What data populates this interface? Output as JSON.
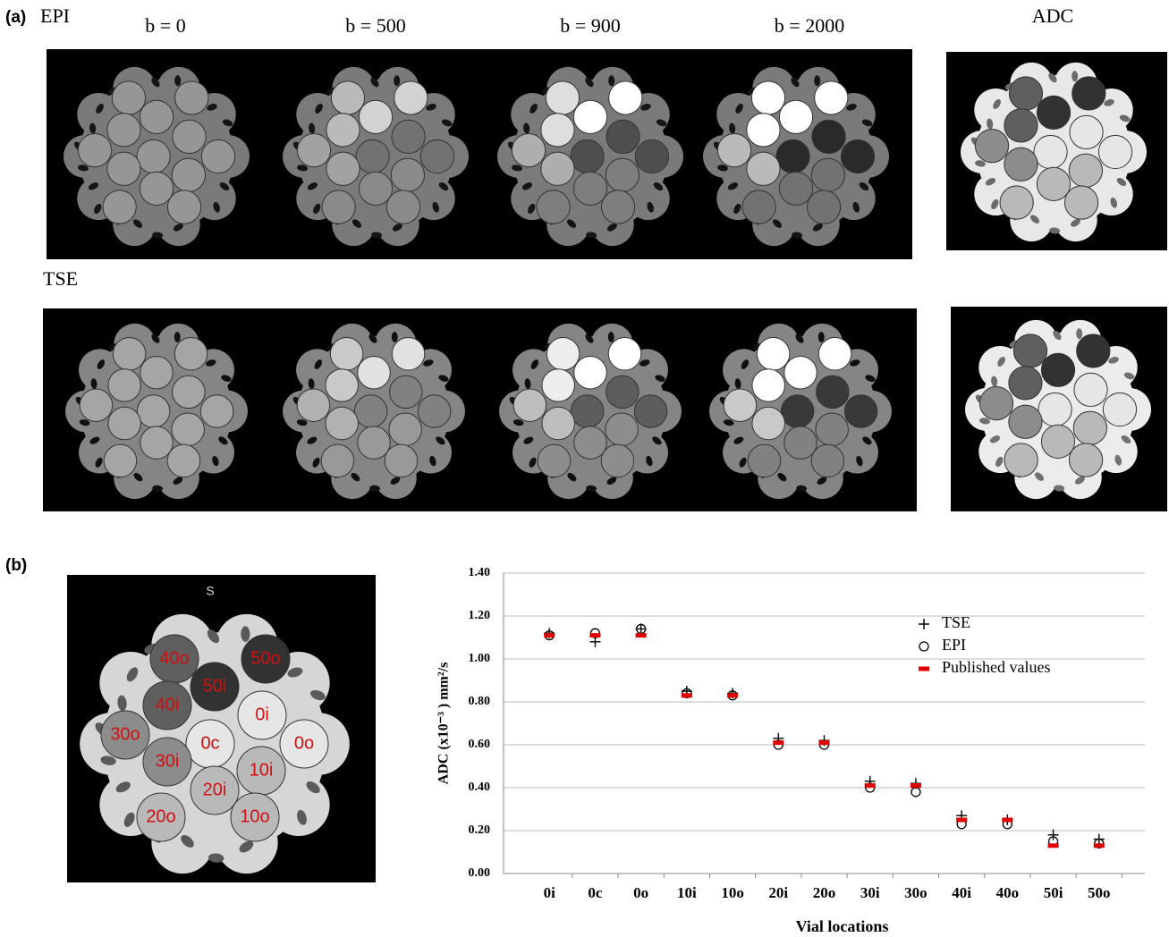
{
  "panel_a": {
    "label": "(a)",
    "rows": [
      "EPI",
      "TSE"
    ],
    "columns": [
      "b = 0",
      "b = 500",
      "b = 900",
      "b = 2000",
      "ADC"
    ]
  },
  "panel_b": {
    "label": "(b)",
    "map_orientation": "S",
    "vial_labels": [
      "40o",
      "50o",
      "50i",
      "40i",
      "0i",
      "30o",
      "0c",
      "0o",
      "30i",
      "10i",
      "20i",
      "20o",
      "10o"
    ]
  },
  "chart_data": {
    "type": "scatter",
    "y_label": "ADC (x10⁻³ ) mm²/s",
    "x_label": "Vial locations",
    "categories": [
      "0i",
      "0c",
      "0o",
      "10i",
      "10o",
      "20i",
      "20o",
      "30i",
      "30o",
      "40i",
      "40o",
      "50i",
      "50o"
    ],
    "series": [
      {
        "name": "TSE",
        "color": "#000000",
        "marker": "plus",
        "values": [
          1.12,
          1.08,
          1.14,
          0.85,
          0.84,
          0.63,
          0.62,
          0.43,
          0.42,
          0.27,
          0.25,
          0.18,
          0.16
        ]
      },
      {
        "name": "EPI",
        "color": "#000000",
        "marker": "circle",
        "values": [
          1.11,
          1.12,
          1.14,
          0.84,
          0.83,
          0.6,
          0.6,
          0.4,
          0.38,
          0.23,
          0.23,
          0.15,
          0.14
        ]
      },
      {
        "name": "Published values",
        "color": "#e00000",
        "marker": "dash",
        "values": [
          1.11,
          1.11,
          1.11,
          0.83,
          0.83,
          0.61,
          0.61,
          0.41,
          0.41,
          0.25,
          0.25,
          0.13,
          0.13
        ]
      }
    ],
    "ylim": [
      0,
      1.4
    ],
    "yticks": [
      {
        "value": 0,
        "label": "0.00"
      },
      {
        "value": 0.2,
        "label": "0.20"
      },
      {
        "value": 0.4,
        "label": "0.40"
      },
      {
        "value": 0.6,
        "label": "0.60"
      },
      {
        "value": 0.8,
        "label": "0.80"
      },
      {
        "value": 1,
        "label": "1.00"
      },
      {
        "value": 1.2,
        "label": "1.20"
      },
      {
        "value": 1.4,
        "label": "1.40"
      }
    ],
    "grid": true,
    "legend": "upper right"
  }
}
